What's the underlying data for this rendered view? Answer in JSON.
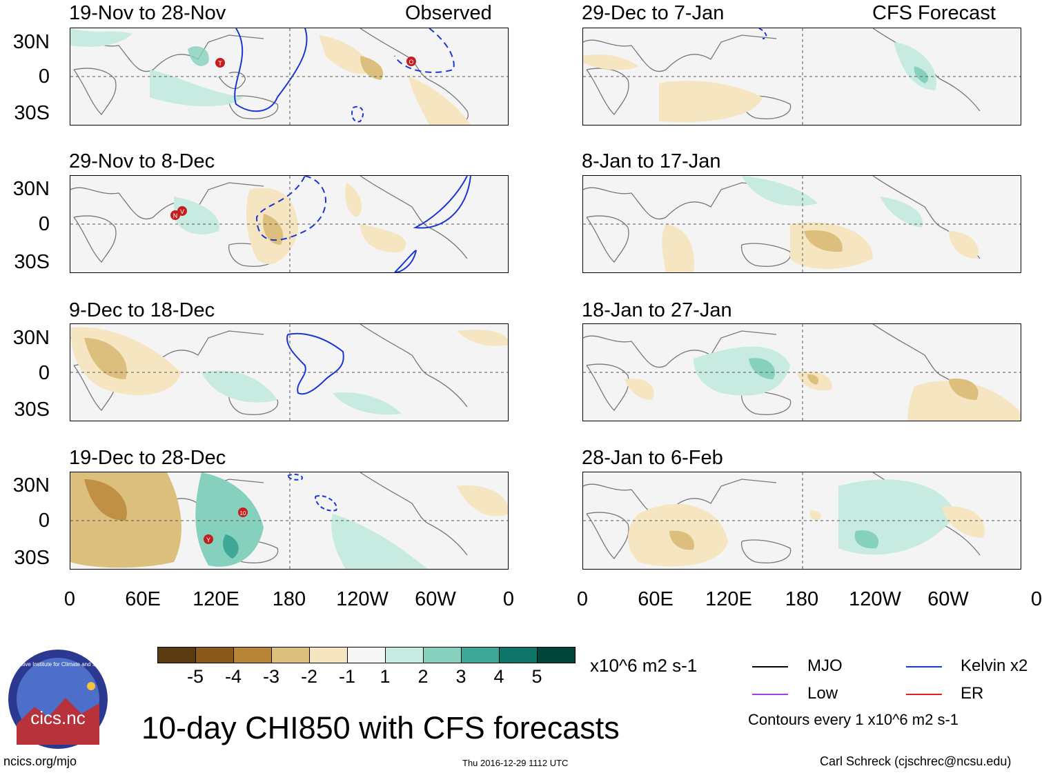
{
  "header": {
    "observed_label": "Observed",
    "forecast_label": "CFS Forecast"
  },
  "panels": {
    "observed": [
      {
        "dates": "19-Nov to 28-Nov"
      },
      {
        "dates": "29-Nov to 8-Dec"
      },
      {
        "dates": "9-Dec to 18-Dec"
      },
      {
        "dates": "19-Dec to 28-Dec"
      }
    ],
    "forecast": [
      {
        "dates": "29-Dec to 7-Jan"
      },
      {
        "dates": "8-Jan to 17-Jan"
      },
      {
        "dates": "18-Jan to 27-Jan"
      },
      {
        "dates": "28-Jan to 6-Feb"
      }
    ]
  },
  "axes": {
    "lat_labels": [
      "30N",
      "0",
      "30S"
    ],
    "lon_labels": [
      "0",
      "60E",
      "120E",
      "180",
      "120W",
      "60W",
      "0"
    ]
  },
  "colorbar": {
    "ticks": [
      "-5",
      "-4",
      "-3",
      "-2",
      "-1",
      "1",
      "2",
      "3",
      "4",
      "5"
    ],
    "units": "x10^6 m2 s-1",
    "colors": [
      "#5a3b12",
      "#8a5a1c",
      "#b98536",
      "#dcbf7d",
      "#f5e6c1",
      "#f7f7f7",
      "#c8ebe1",
      "#86d1bd",
      "#3ea796",
      "#0f7468",
      "#00443a"
    ]
  },
  "legend": {
    "items": [
      {
        "label": "MJO",
        "color": "#000000"
      },
      {
        "label": "Kelvin x2",
        "color": "#1a35d6"
      },
      {
        "label": "Low",
        "color": "#a040e0"
      },
      {
        "label": "ER",
        "color": "#e02020"
      }
    ],
    "contour_note": "Contours every 1 x10^6 m2 s-1"
  },
  "logo": {
    "text": "cics.nc",
    "ring_text": "Cooperative Institute for Climate and Satellites"
  },
  "main_title": "10-day CHI850 with CFS forecasts",
  "footer": {
    "website": "ncics.org/mjo",
    "timestamp": "Thu 2016-12-29 1112 UTC",
    "author": "Carl Schreck (cjschrec@ncsu.edu)"
  },
  "storm_markers": [
    {
      "panel": "observed-0",
      "letter": "T"
    },
    {
      "panel": "observed-0",
      "letter": "O"
    },
    {
      "panel": "observed-1",
      "letter": "N"
    },
    {
      "panel": "observed-1",
      "letter": "V"
    },
    {
      "panel": "observed-3",
      "letter": "10"
    },
    {
      "panel": "observed-3",
      "letter": "Y"
    }
  ]
}
